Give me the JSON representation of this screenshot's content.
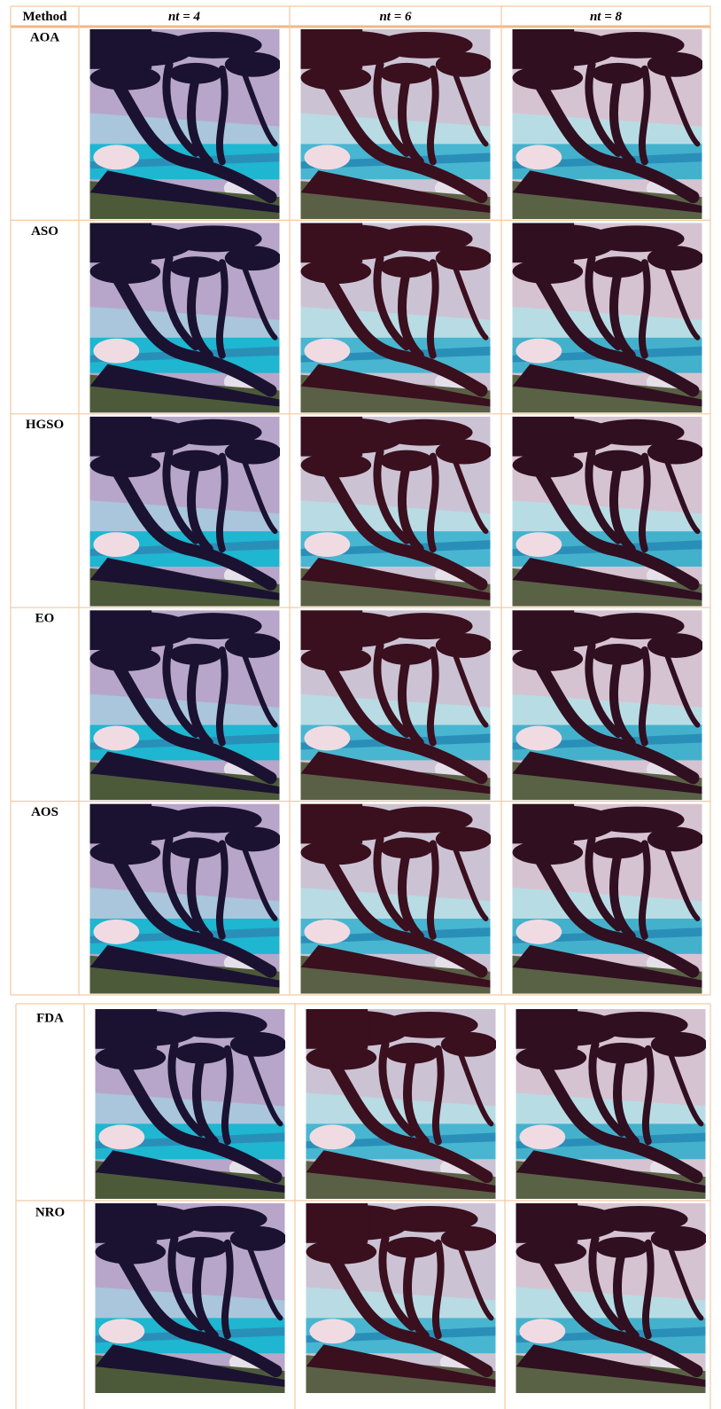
{
  "table": {
    "header": [
      "Method",
      "nt = 4",
      "nt = 6",
      "nt = 8"
    ],
    "rows": [
      [
        "AOA"
      ],
      [
        "ASO"
      ],
      [
        "HGSO"
      ],
      [
        "EO"
      ],
      [
        "AOS"
      ]
    ]
  },
  "table2": {
    "rows": [
      [
        "FDA"
      ],
      [
        "NRO"
      ]
    ]
  }
}
